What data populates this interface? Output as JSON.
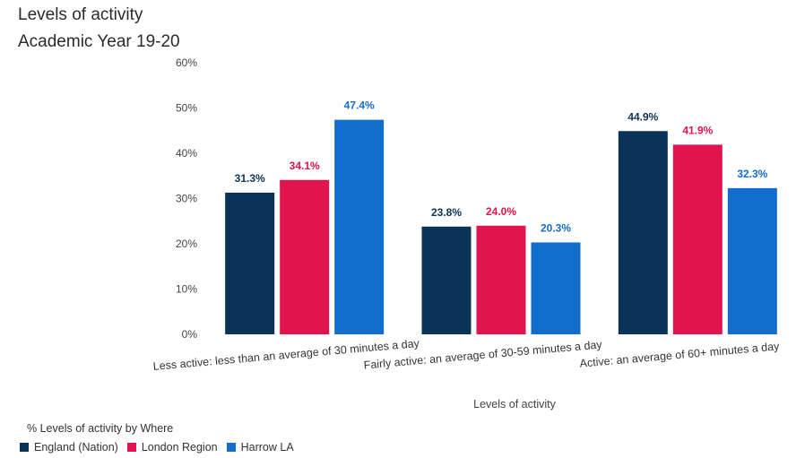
{
  "header": {
    "title_line1": "Levels of activity",
    "title_line2": "Academic Year 19-20"
  },
  "chart_data": {
    "type": "bar",
    "categories": [
      "Less active: less than an average of 30 minutes a day",
      "Fairly active: an average of 30-59 minutes a day",
      "Active: an average of 60+ minutes a day"
    ],
    "series": [
      {
        "name": "England (Nation)",
        "color": "#0b3359",
        "values": [
          31.3,
          23.8,
          44.9
        ],
        "labels": [
          "31.3%",
          "23.8%",
          "44.9%"
        ]
      },
      {
        "name": "London Region",
        "color": "#e1144e",
        "values": [
          34.1,
          24.0,
          41.9
        ],
        "labels": [
          "34.1%",
          "24.0%",
          "41.9%"
        ]
      },
      {
        "name": "Harrow LA",
        "color": "#136dcd",
        "values": [
          47.4,
          20.3,
          32.3
        ],
        "labels": [
          "47.4%",
          "20.3%",
          "32.3%"
        ]
      }
    ],
    "y_ticks": [
      "0%",
      "10%",
      "20%",
      "30%",
      "40%",
      "50%",
      "60%"
    ],
    "ylim": [
      0,
      60
    ],
    "xlabel": "Levels of activity",
    "ylabel": "",
    "legend_title": "% Levels of activity by Where",
    "legend_position": "bottom-left",
    "grid": false
  }
}
